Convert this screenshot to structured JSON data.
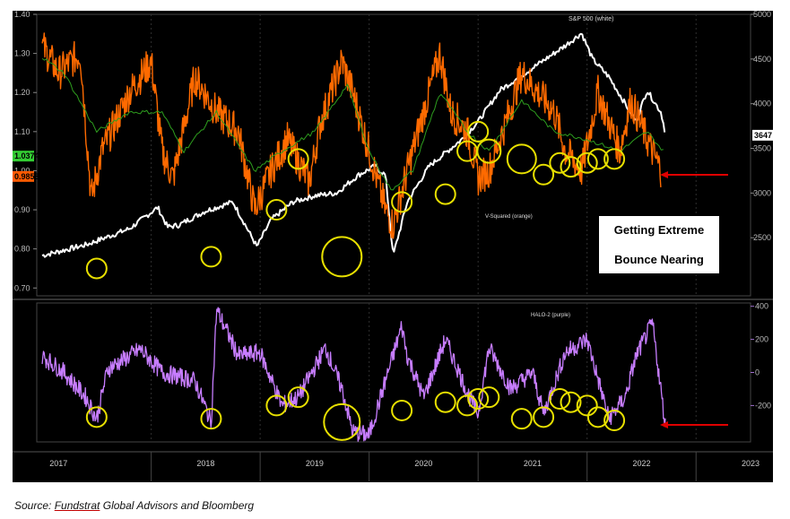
{
  "chart_data": [
    {
      "type": "line",
      "panel": "upper",
      "series": [
        {
          "name": "S&P 500 (white)",
          "color": "#ffffff",
          "axis": "right",
          "x": [
            2017.0,
            2017.4,
            2017.8,
            2018.06,
            2018.15,
            2018.25,
            2018.5,
            2018.75,
            2018.97,
            2019.1,
            2019.3,
            2019.5,
            2019.7,
            2019.9,
            2020.05,
            2020.15,
            2020.22,
            2020.35,
            2020.55,
            2020.7,
            2020.85,
            2021.0,
            2021.2,
            2021.5,
            2021.8,
            2021.95,
            2022.05,
            2022.2,
            2022.35,
            2022.45,
            2022.55,
            2022.68,
            2022.72
          ],
          "values": [
            2300,
            2420,
            2600,
            2840,
            2620,
            2640,
            2800,
            2900,
            2400,
            2700,
            2900,
            2970,
            3000,
            3200,
            3300,
            3200,
            2300,
            2900,
            3300,
            3450,
            3600,
            3800,
            4150,
            4400,
            4650,
            4790,
            4500,
            4300,
            4000,
            3800,
            4150,
            3900,
            3660
          ]
        },
        {
          "name": "V-Squared (orange)",
          "color": "#ff6a00",
          "axis": "left",
          "x": [
            2017.0,
            2017.15,
            2017.35,
            2017.45,
            2017.55,
            2017.8,
            2018.0,
            2018.1,
            2018.2,
            2018.4,
            2018.6,
            2018.8,
            2018.95,
            2019.1,
            2019.25,
            2019.45,
            2019.55,
            2019.75,
            2019.85,
            2020.0,
            2020.15,
            2020.22,
            2020.35,
            2020.5,
            2020.65,
            2020.75,
            2020.9,
            2021.0,
            2021.1,
            2021.25,
            2021.4,
            2021.55,
            2021.7,
            2021.8,
            2021.95,
            2022.1,
            2022.3,
            2022.4,
            2022.55,
            2022.68
          ],
          "values": [
            1.32,
            1.25,
            1.3,
            0.93,
            1.05,
            1.2,
            1.28,
            1.05,
            0.98,
            1.24,
            1.15,
            1.1,
            0.9,
            1.0,
            1.08,
            0.97,
            1.12,
            1.28,
            1.2,
            1.05,
            0.9,
            0.86,
            1.0,
            1.15,
            1.3,
            1.15,
            1.1,
            0.98,
            1.0,
            1.12,
            1.25,
            1.2,
            1.15,
            1.05,
            1.0,
            1.2,
            1.05,
            1.18,
            1.08,
            1.0
          ]
        },
        {
          "name": "green",
          "color": "#2e9e1e",
          "axis": "left",
          "x": [
            2017.0,
            2017.2,
            2017.5,
            2017.8,
            2018.1,
            2018.3,
            2018.6,
            2018.95,
            2019.2,
            2019.5,
            2019.8,
            2020.0,
            2020.2,
            2020.4,
            2020.65,
            2020.9,
            2021.1,
            2021.4,
            2021.7,
            2022.0,
            2022.3,
            2022.55,
            2022.7
          ],
          "values": [
            1.29,
            1.25,
            1.1,
            1.15,
            1.15,
            1.05,
            1.15,
            1.0,
            1.05,
            1.1,
            1.22,
            1.05,
            0.95,
            1.0,
            1.2,
            1.1,
            1.05,
            1.18,
            1.1,
            1.08,
            1.05,
            1.1,
            1.05
          ]
        }
      ],
      "left_axis": {
        "ylim": [
          0.68,
          1.4
        ],
        "ticks": [
          "1.40",
          "1.30",
          "1.20",
          "1.10",
          "1.00",
          "0.90",
          "0.80",
          "0.70"
        ]
      },
      "right_axis": {
        "ylim": [
          1850,
          5000
        ],
        "ticks": [
          "5000",
          "4500",
          "4000",
          "3500",
          "3000",
          "2500"
        ]
      },
      "last_value_tags": [
        {
          "label": "1.0374",
          "value": 1.0374,
          "color": "#33cc33",
          "axis": "left"
        },
        {
          "label": "0.9853",
          "value": 0.9853,
          "color": "#ff5a00",
          "axis": "left"
        },
        {
          "label": "3647",
          "value": 3647,
          "color": "#ffffff",
          "axis": "right"
        }
      ],
      "labels": {
        "sp500": "S&P 500 (white)",
        "vsquared": "V-Squared (orange)"
      },
      "circled_lows_x": [
        2017.5,
        2018.55,
        2019.15,
        2019.35,
        2019.75,
        2020.3,
        2020.7,
        2020.9,
        2021.0,
        2021.1,
        2021.4,
        2021.6,
        2021.75,
        2021.85,
        2022.0,
        2022.1,
        2022.25
      ]
    },
    {
      "type": "line",
      "panel": "lower",
      "series": [
        {
          "name": "HALO-2 (purple)",
          "color": "#c77dff",
          "axis": "right",
          "x": [
            2017.0,
            2017.2,
            2017.4,
            2017.5,
            2017.6,
            2017.9,
            2018.1,
            2018.4,
            2018.55,
            2018.6,
            2018.8,
            2019.0,
            2019.2,
            2019.35,
            2019.6,
            2019.75,
            2019.85,
            2020.0,
            2020.3,
            2020.35,
            2020.5,
            2020.7,
            2020.9,
            2021.0,
            2021.1,
            2021.3,
            2021.5,
            2021.6,
            2021.8,
            2022.0,
            2022.2,
            2022.35,
            2022.45,
            2022.6,
            2022.72
          ],
          "values": [
            100,
            0,
            -150,
            -280,
            20,
            140,
            0,
            -50,
            -300,
            380,
            100,
            120,
            -200,
            -150,
            150,
            -100,
            -360,
            -380,
            280,
            100,
            -150,
            200,
            -120,
            -250,
            150,
            -100,
            0,
            -250,
            120,
            200,
            -280,
            -150,
            100,
            300,
            -330
          ]
        }
      ],
      "right_axis": {
        "ylim": [
          -420,
          420
        ],
        "ticks": [
          "400",
          "200",
          "0",
          "-200"
        ]
      },
      "label": "HALO-2 (purple)",
      "circled_lows_x": [
        2017.5,
        2018.55,
        2019.15,
        2019.35,
        2019.75,
        2020.3,
        2020.7,
        2020.9,
        2021.0,
        2021.1,
        2021.4,
        2021.6,
        2021.75,
        2021.85,
        2022.0,
        2022.1,
        2022.25
      ]
    }
  ],
  "x_axis": {
    "ticks": [
      "2017",
      "2018",
      "2019",
      "2020",
      "2021",
      "2022",
      "2023"
    ],
    "range": [
      2016.95,
      2023.5
    ]
  },
  "annotation": {
    "line1": "Getting Extreme",
    "line2": "Bounce Nearing"
  },
  "source": {
    "prefix": "Source:  ",
    "underlined": "Fundstrat",
    "rest": " Global Advisors and Bloomberg"
  },
  "colors": {
    "background": "#000000",
    "circle": "#e8e000",
    "arrow": "#e00000",
    "grid": "#303030"
  }
}
